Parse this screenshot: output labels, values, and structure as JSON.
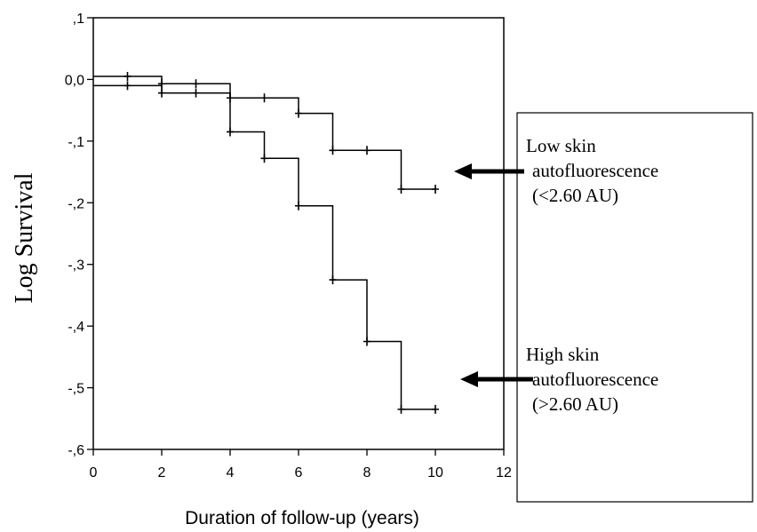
{
  "chart_data": {
    "type": "line",
    "step": true,
    "title": "",
    "xlabel": "Duration of follow-up (years)",
    "ylabel": "Log Survival",
    "xlim": [
      0,
      12
    ],
    "ylim": [
      -0.6,
      0.1
    ],
    "xticks": [
      0,
      2,
      4,
      6,
      8,
      10,
      12
    ],
    "xtick_labels": [
      "0",
      "2",
      "4",
      "6",
      "8",
      "10",
      "12"
    ],
    "yticks": [
      0.1,
      0.0,
      -0.1,
      -0.2,
      -0.3,
      -0.4,
      -0.5,
      -0.6
    ],
    "ytick_labels": [
      ",1",
      "0,0",
      "-,1",
      "-,2",
      "-,3",
      "-,4",
      "-,5",
      "-,6"
    ],
    "grid": false,
    "series": [
      {
        "name": "Low skin autofluorescence (<2.60 AU)",
        "points": [
          [
            0,
            0.005
          ],
          [
            2,
            -0.007
          ],
          [
            4,
            -0.03
          ],
          [
            6,
            -0.055
          ],
          [
            7,
            -0.115
          ],
          [
            9,
            -0.178
          ],
          [
            10,
            -0.178
          ]
        ],
        "censor_marks": [
          [
            1,
            0.005
          ],
          [
            2,
            -0.007
          ],
          [
            3,
            -0.007
          ],
          [
            5,
            -0.03
          ],
          [
            6,
            -0.055
          ],
          [
            7,
            -0.115
          ],
          [
            8,
            -0.115
          ],
          [
            9,
            -0.178
          ],
          [
            10,
            -0.178
          ]
        ]
      },
      {
        "name": "High skin autofluorescence (>2.60 AU)",
        "points": [
          [
            0,
            -0.01
          ],
          [
            2,
            -0.022
          ],
          [
            4,
            -0.085
          ],
          [
            5,
            -0.128
          ],
          [
            6,
            -0.205
          ],
          [
            7,
            -0.325
          ],
          [
            8,
            -0.425
          ],
          [
            9,
            -0.535
          ],
          [
            10,
            -0.535
          ]
        ],
        "censor_marks": [
          [
            1,
            -0.01
          ],
          [
            2,
            -0.022
          ],
          [
            3,
            -0.022
          ],
          [
            4,
            -0.03
          ],
          [
            4,
            -0.085
          ],
          [
            5,
            -0.128
          ],
          [
            6,
            -0.205
          ],
          [
            7,
            -0.325
          ],
          [
            8,
            -0.425
          ],
          [
            9,
            -0.535
          ],
          [
            10,
            -0.535
          ]
        ]
      }
    ],
    "annotations": [
      {
        "lines": [
          "Low skin",
          "autofluorescence",
          "(<2.60 AU)"
        ],
        "arrow_to": "Low skin autofluorescence (<2.60 AU)"
      },
      {
        "lines": [
          "High skin",
          "autofluorescence",
          "(>2.60 AU)"
        ],
        "arrow_to": "High skin autofluorescence (>2.60 AU)"
      }
    ]
  }
}
